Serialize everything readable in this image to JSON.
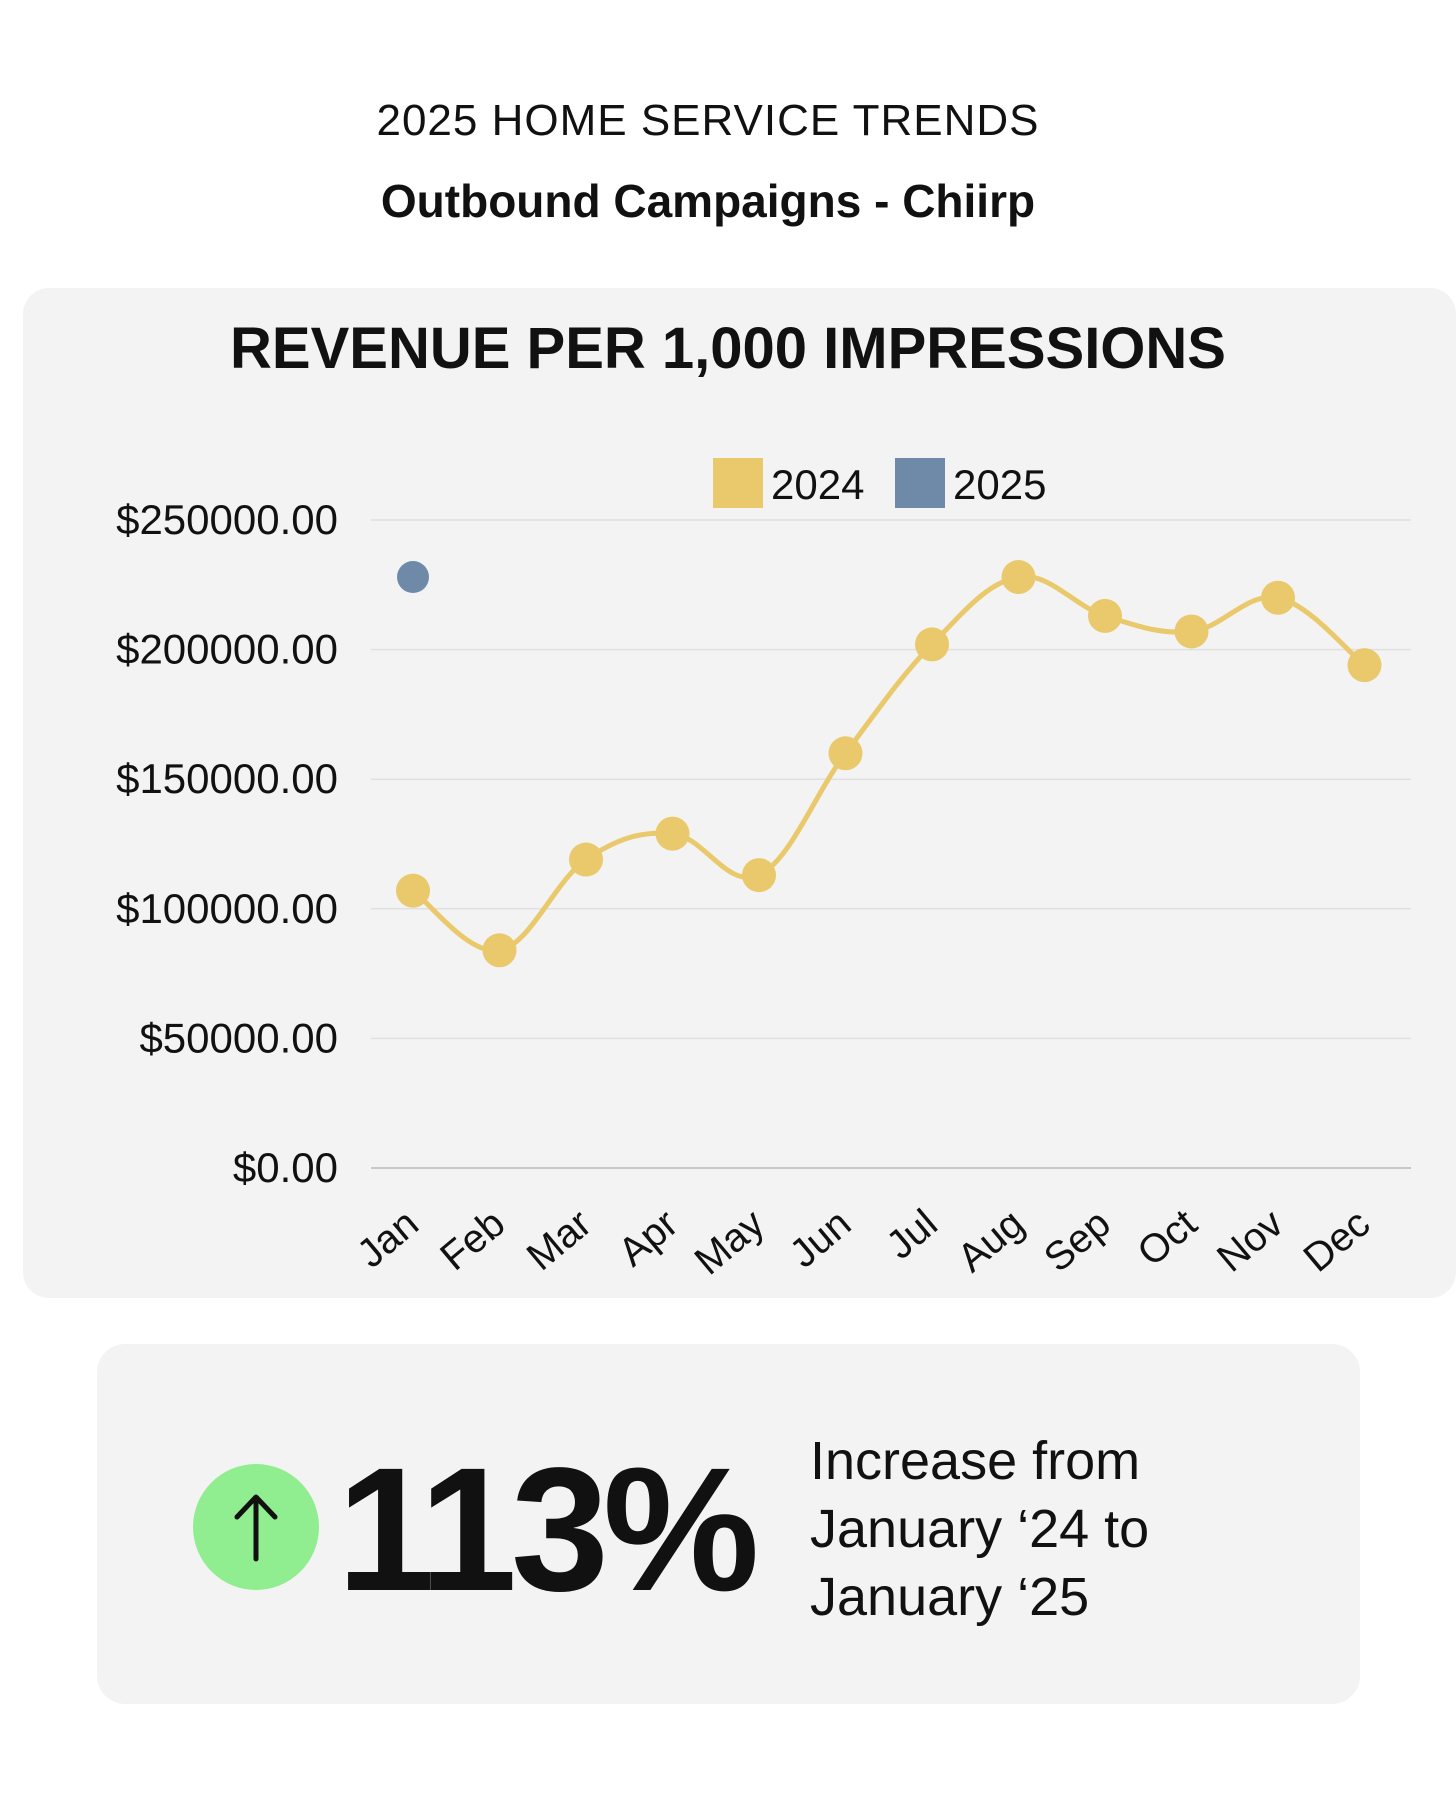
{
  "header": {
    "subtitle": "2025 HOME SERVICE TRENDS",
    "title": "Outbound Campaigns - Chiirp"
  },
  "colors": {
    "series_2024": "#e9c96b",
    "series_2025": "#6f8aa8",
    "arrow_badge": "#90ee90"
  },
  "chart_data": {
    "type": "line",
    "title": "REVENUE PER 1,000 IMPRESSIONS",
    "xlabel": "",
    "ylabel": "",
    "categories": [
      "Jan",
      "Feb",
      "Mar",
      "Apr",
      "May",
      "Jun",
      "Jul",
      "Aug",
      "Sep",
      "Oct",
      "Nov",
      "Dec"
    ],
    "ylim": [
      0,
      250000
    ],
    "yticks": [
      0,
      50000,
      100000,
      150000,
      200000,
      250000
    ],
    "ytick_labels": [
      "$0.00",
      "$50000.00",
      "$100000.00",
      "$150000.00",
      "$200000.00",
      "$250000.00"
    ],
    "grid": true,
    "legend": "top-center",
    "series": [
      {
        "name": "2024",
        "color": "#e9c96b",
        "values": [
          107000,
          84000,
          119000,
          129000,
          113000,
          160000,
          202000,
          228000,
          213000,
          207000,
          220000,
          194000
        ]
      },
      {
        "name": "2025",
        "color": "#6f8aa8",
        "values": [
          228000,
          null,
          null,
          null,
          null,
          null,
          null,
          null,
          null,
          null,
          null,
          null
        ]
      }
    ]
  },
  "stat": {
    "value": "113%",
    "description_lines": [
      "Increase from",
      "January ‘24 to",
      "January ‘25"
    ]
  }
}
